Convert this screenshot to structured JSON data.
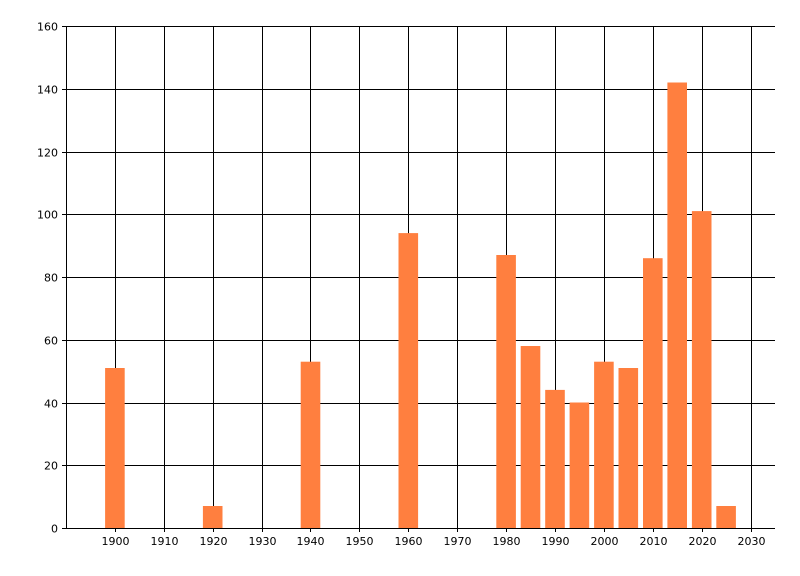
{
  "chart_data": {
    "type": "bar",
    "title": "",
    "xlabel": "",
    "ylabel": "",
    "x": [
      1900,
      1920,
      1940,
      1960,
      1980,
      1985,
      1990,
      1995,
      2000,
      2005,
      2010,
      2015,
      2020,
      2025
    ],
    "values": [
      51,
      7,
      53,
      94,
      87,
      58,
      44,
      40,
      53,
      51,
      86,
      142,
      101,
      7
    ],
    "bar_width_years": 4,
    "xlim": [
      1890,
      2035
    ],
    "ylim": [
      0,
      160
    ],
    "x_ticks": [
      1900,
      1910,
      1920,
      1930,
      1940,
      1950,
      1960,
      1970,
      1980,
      1990,
      2000,
      2010,
      2020,
      2030
    ],
    "y_ticks": [
      0,
      20,
      40,
      60,
      80,
      100,
      120,
      140,
      160
    ],
    "grid": true,
    "legend": "none",
    "colors": {
      "bar": "#FF7F3F",
      "grid": "#000000",
      "axis": "#000000",
      "background": "#FFFFFF"
    }
  }
}
